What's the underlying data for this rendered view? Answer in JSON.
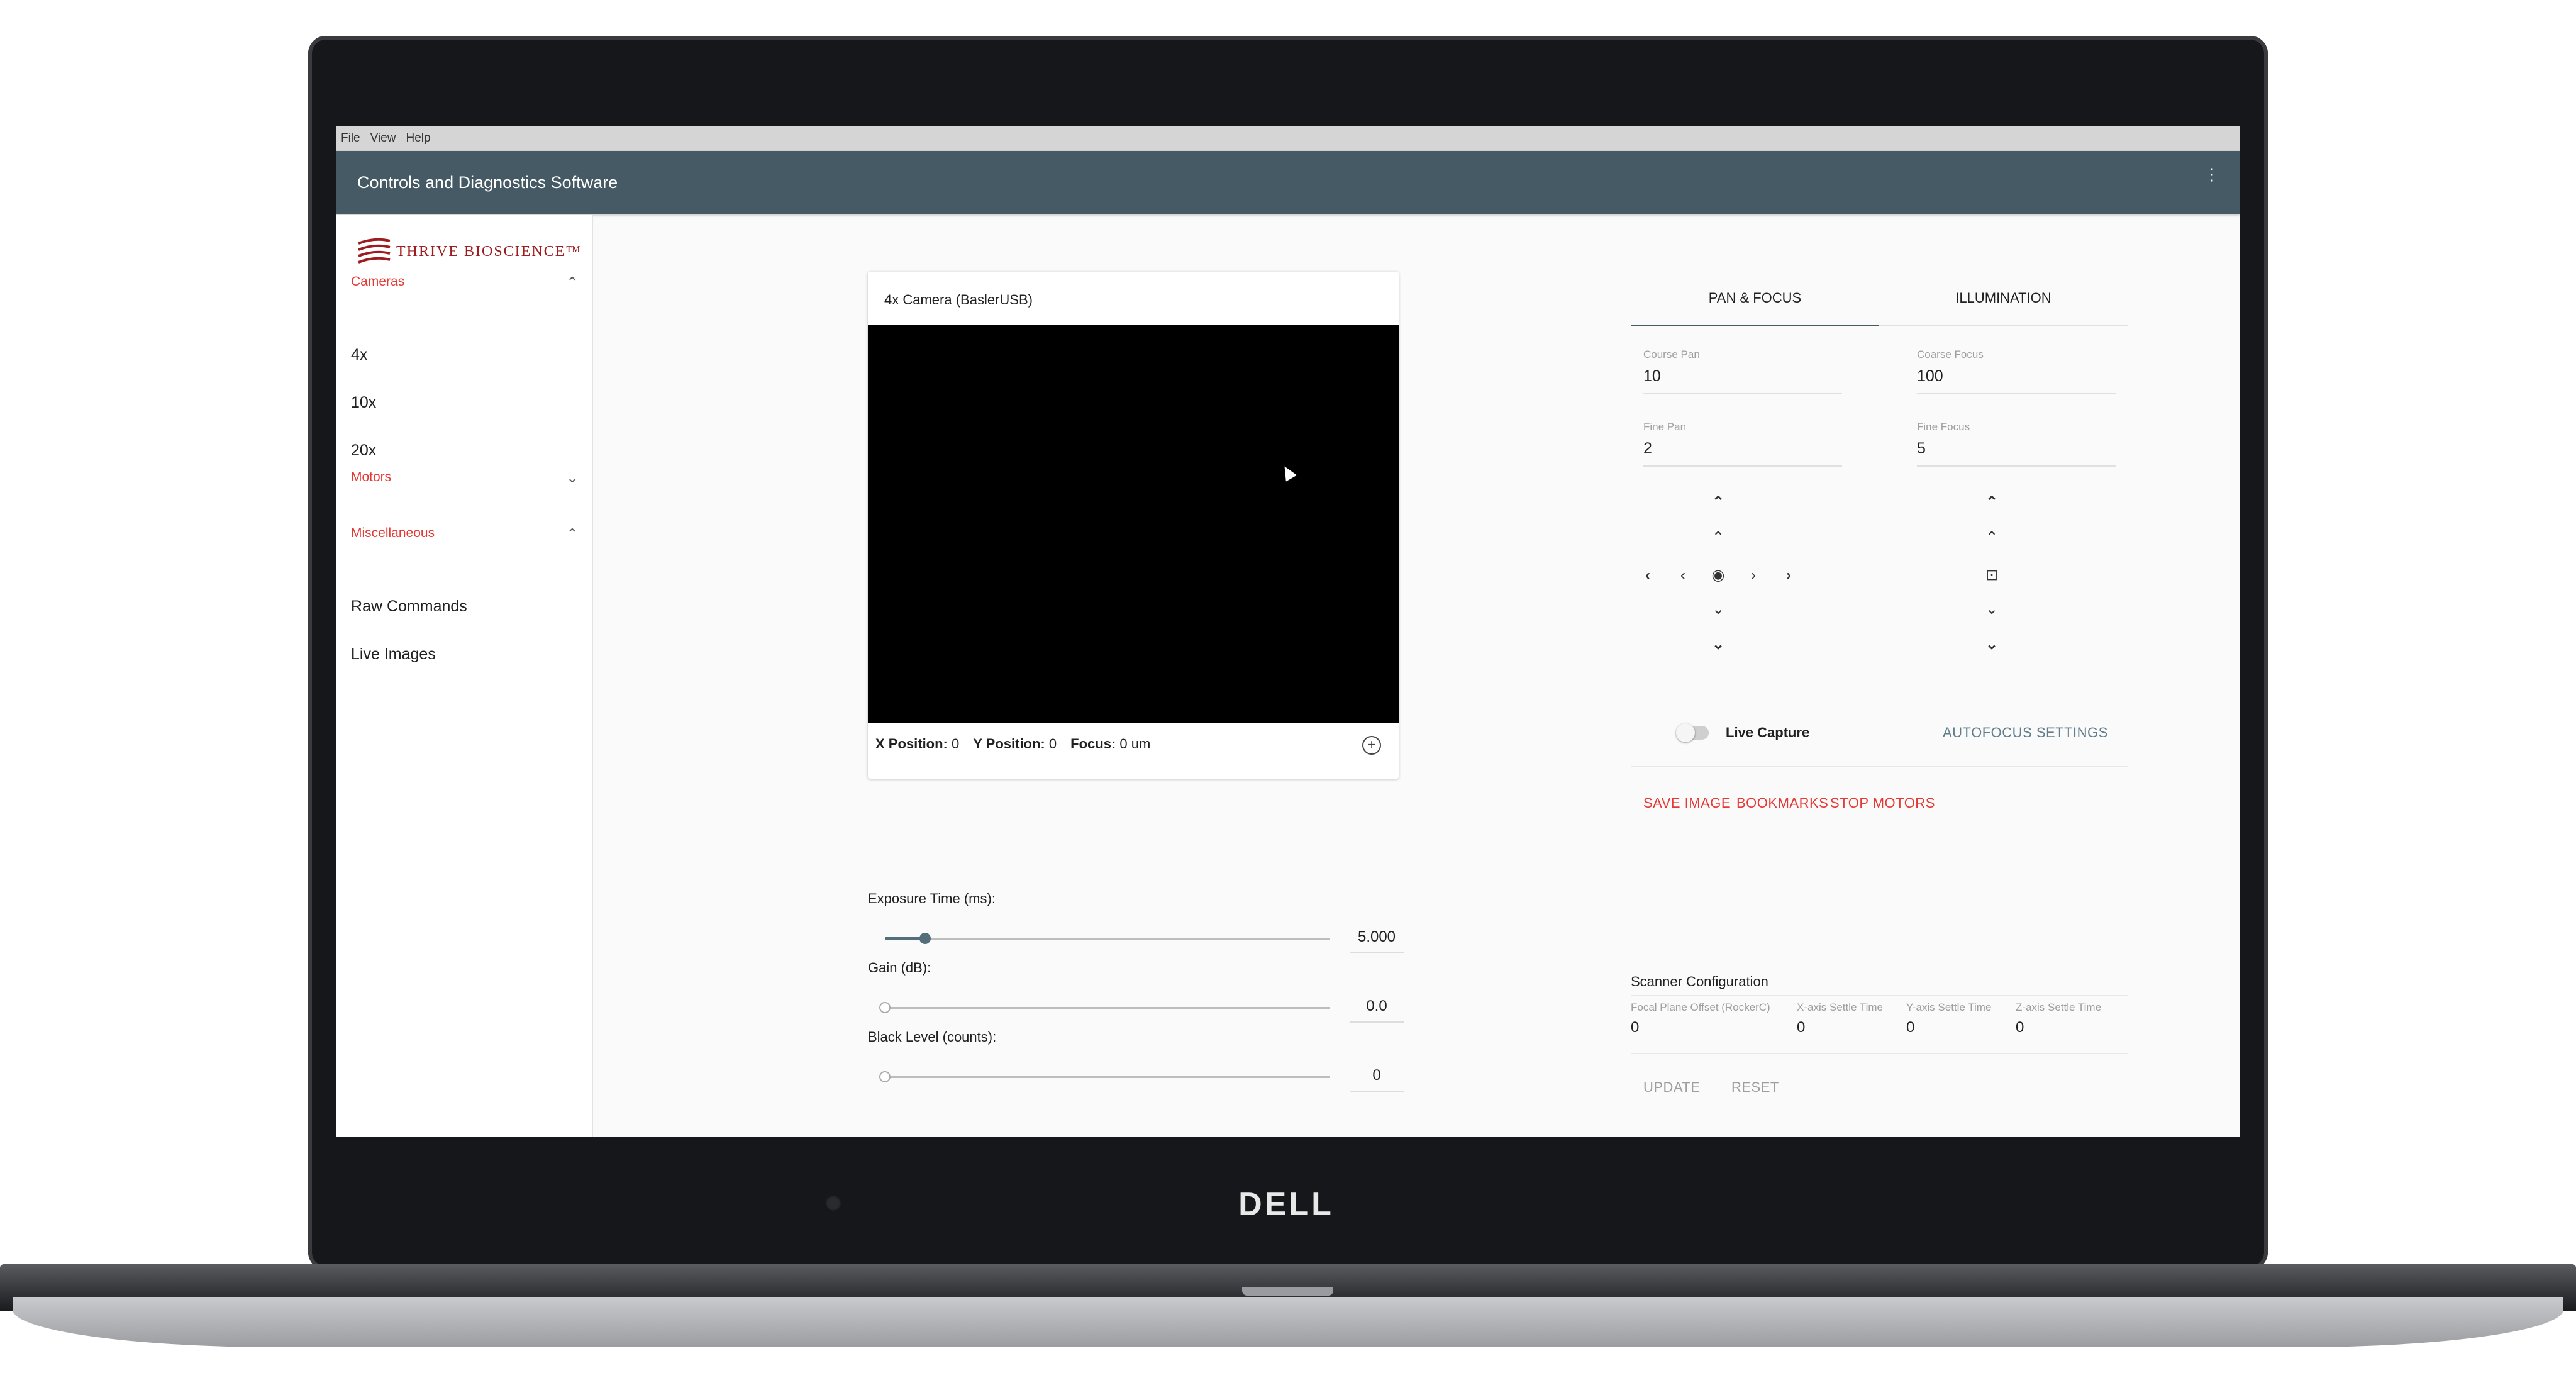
{
  "menu": {
    "file": "File",
    "view": "View",
    "help": "Help"
  },
  "appbar": {
    "title": "Controls and Diagnostics Software",
    "more_icon": "more-vert-icon"
  },
  "logo": {
    "text": "THRIVE BIOSCIENCE™"
  },
  "sidebar": {
    "cameras": {
      "label": "Cameras",
      "items": [
        "4x",
        "10x",
        "20x"
      ]
    },
    "motors": {
      "label": "Motors"
    },
    "misc": {
      "label": "Miscellaneous",
      "items": [
        "Raw Commands",
        "Live Images"
      ]
    }
  },
  "camera": {
    "title": "4x Camera (BaslerUSB)",
    "x_label": "X Position:",
    "x_value": "0",
    "y_label": "Y Position:",
    "y_value": "0",
    "focus_label": "Focus:",
    "focus_value": "0 um"
  },
  "sliders": {
    "exposure": {
      "label": "Exposure Time (ms):",
      "value": "5.000",
      "fraction": 0.09
    },
    "gain": {
      "label": "Gain (dB):",
      "value": "0.0",
      "fraction": 0
    },
    "black": {
      "label": "Black Level (counts):",
      "value": "0",
      "fraction": 0
    }
  },
  "tabs": {
    "pan_focus": "PAN & FOCUS",
    "illumination": "ILLUMINATION"
  },
  "fields": {
    "course_pan": {
      "label": "Course Pan",
      "value": "10"
    },
    "course_focus": {
      "label": "Coarse Focus",
      "value": "100"
    },
    "fine_pan": {
      "label": "Fine Pan",
      "value": "2"
    },
    "fine_focus": {
      "label": "Fine Focus",
      "value": "5"
    }
  },
  "controls": {
    "live_capture": "Live Capture",
    "autofocus": "AUTOFOCUS SETTINGS"
  },
  "actions": {
    "save_image": "SAVE IMAGE",
    "bookmarks": "BOOKMARKS",
    "stop_motors": "STOP MOTORS"
  },
  "scanner": {
    "title": "Scanner Configuration",
    "columns": [
      {
        "label": "Focal Plane Offset (RockerC)",
        "value": "0"
      },
      {
        "label": "X-axis Settle Time",
        "value": "0"
      },
      {
        "label": "Y-axis Settle Time",
        "value": "0"
      },
      {
        "label": "Z-axis Settle Time",
        "value": "0"
      }
    ],
    "update": "UPDATE",
    "reset": "RESET"
  },
  "hardware": {
    "brand": "DELL"
  }
}
